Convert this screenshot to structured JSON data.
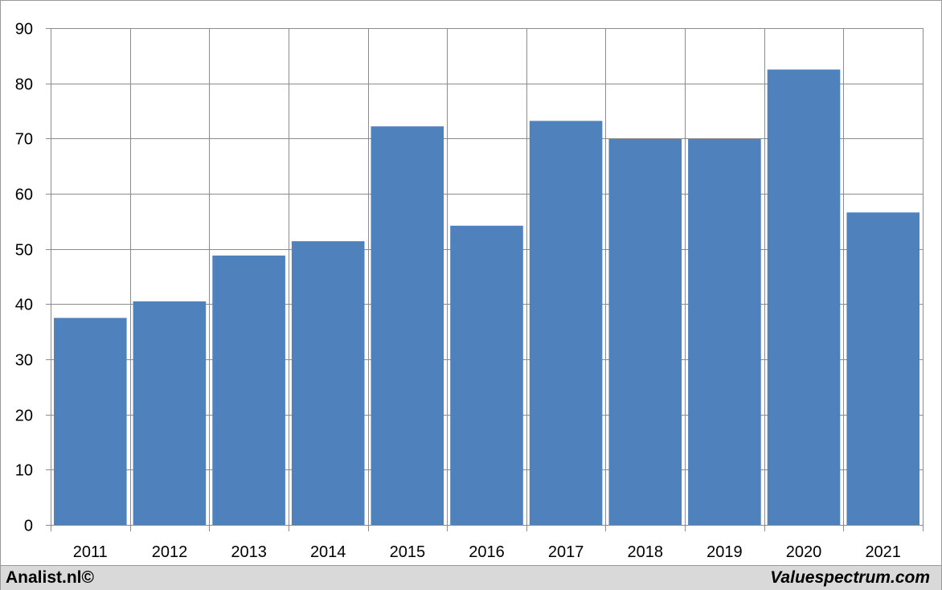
{
  "footer": {
    "left_text": "Analist.nl©",
    "right_text": "Valuespectrum.com"
  },
  "colors": {
    "bar": "#4f81bd",
    "grid": "#8c8c8c",
    "footer_bg": "#d9d9d9"
  },
  "chart_data": {
    "type": "bar",
    "categories": [
      "2011",
      "2012",
      "2013",
      "2014",
      "2015",
      "2016",
      "2017",
      "2018",
      "2019",
      "2020",
      "2021"
    ],
    "values": [
      37.5,
      40.5,
      48.8,
      51.4,
      72.2,
      54.2,
      73.2,
      69.9,
      69.9,
      82.5,
      56.6
    ],
    "title": "",
    "xlabel": "",
    "ylabel": "",
    "ylim": [
      0,
      90
    ],
    "yticks": [
      0,
      10,
      20,
      30,
      40,
      50,
      60,
      70,
      80,
      90
    ],
    "grid": true,
    "legend": "none"
  }
}
